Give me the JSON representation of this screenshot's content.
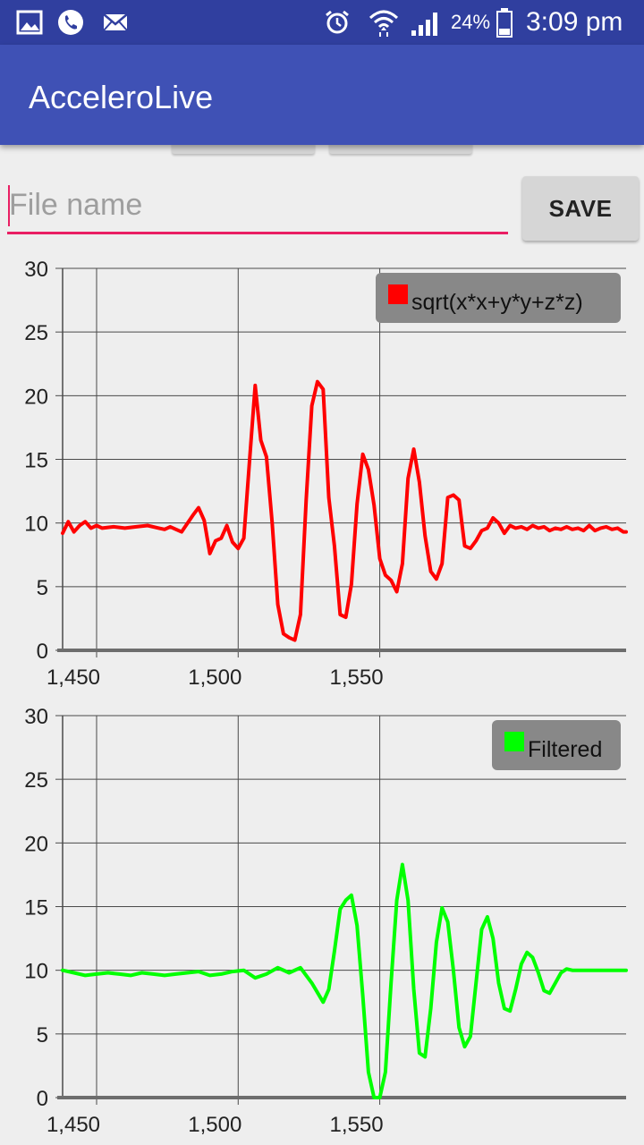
{
  "status_bar": {
    "battery_percent": "24%",
    "time": "3:09 pm",
    "icons": [
      "gallery-icon",
      "phone-call-icon",
      "email-icon",
      "alarm-icon",
      "wifi-icon",
      "signal-icon",
      "battery-icon"
    ]
  },
  "app": {
    "title": "AcceleroLive"
  },
  "file_form": {
    "placeholder": "File name",
    "value": "",
    "save_label": "SAVE"
  },
  "colors": {
    "status_bar": "#303f9f",
    "app_bar": "#3f51b5",
    "accent": "#e91e63",
    "series_raw": "#ff0000",
    "series_filtered": "#00ff00"
  },
  "chart_data": [
    {
      "type": "line",
      "title": "",
      "xlabel": "",
      "ylabel": "",
      "xlim": [
        1438,
        1637
      ],
      "ylim": [
        0,
        30
      ],
      "yticks": [
        0,
        5,
        10,
        15,
        20,
        25,
        30
      ],
      "xticks": [
        1450,
        1500,
        1550
      ],
      "xtick_labels": [
        "1,450",
        "1,500",
        "1,550"
      ],
      "grid": true,
      "legend": "top-right",
      "series": [
        {
          "name": "sqrt(x*x+y*y+z*z)",
          "color": "#ff0000",
          "x": [
            1438,
            1440,
            1442,
            1444,
            1446,
            1448,
            1450,
            1452,
            1456,
            1460,
            1464,
            1468,
            1472,
            1474,
            1476,
            1480,
            1484,
            1486,
            1488,
            1490,
            1492,
            1494,
            1496,
            1498,
            1500,
            1502,
            1504,
            1506,
            1508,
            1510,
            1512,
            1514,
            1516,
            1518,
            1520,
            1522,
            1524,
            1526,
            1528,
            1530,
            1532,
            1534,
            1536,
            1538,
            1540,
            1542,
            1544,
            1546,
            1548,
            1550,
            1552,
            1554,
            1556,
            1558,
            1560,
            1562,
            1564,
            1566,
            1568,
            1570,
            1572,
            1574,
            1576,
            1578,
            1580,
            1582,
            1584,
            1586,
            1588,
            1590,
            1592,
            1594,
            1596,
            1598,
            1600,
            1602,
            1604,
            1606,
            1608,
            1610,
            1612,
            1614,
            1616,
            1618,
            1620,
            1622,
            1624,
            1626,
            1628,
            1630,
            1632,
            1634,
            1636,
            1637
          ],
          "values": [
            9.2,
            10.1,
            9.3,
            9.8,
            10.1,
            9.6,
            9.8,
            9.6,
            9.7,
            9.6,
            9.7,
            9.8,
            9.6,
            9.5,
            9.7,
            9.3,
            10.6,
            11.2,
            10.2,
            7.6,
            8.6,
            8.8,
            9.8,
            8.5,
            8.0,
            8.8,
            14.8,
            20.8,
            16.5,
            15.2,
            10.0,
            3.6,
            1.3,
            1.0,
            0.8,
            2.8,
            11.8,
            19.2,
            21.1,
            20.5,
            12.0,
            8.2,
            2.8,
            2.6,
            5.2,
            11.5,
            15.4,
            14.2,
            11.4,
            7.2,
            5.9,
            5.5,
            4.6,
            6.8,
            13.5,
            15.8,
            13.2,
            9.0,
            6.2,
            5.6,
            6.8,
            12.0,
            12.2,
            11.8,
            8.2,
            8.0,
            8.6,
            9.4,
            9.6,
            10.4,
            10.0,
            9.2,
            9.8,
            9.6,
            9.7,
            9.5,
            9.8,
            9.6,
            9.7,
            9.4,
            9.6,
            9.5,
            9.7,
            9.5,
            9.6,
            9.4,
            9.8,
            9.4,
            9.6,
            9.7,
            9.5,
            9.6,
            9.3,
            9.3
          ]
        }
      ]
    },
    {
      "type": "line",
      "title": "",
      "xlabel": "",
      "ylabel": "",
      "xlim": [
        1438,
        1637
      ],
      "ylim": [
        0,
        30
      ],
      "yticks": [
        0,
        5,
        10,
        15,
        20,
        25,
        30
      ],
      "xticks": [
        1450,
        1500,
        1550
      ],
      "xtick_labels": [
        "1,450",
        "1,500",
        "1,550"
      ],
      "grid": true,
      "legend": "top-right",
      "series": [
        {
          "name": "Filtered",
          "color": "#00ff00",
          "x": [
            1438,
            1442,
            1446,
            1450,
            1454,
            1458,
            1462,
            1466,
            1470,
            1474,
            1478,
            1482,
            1486,
            1490,
            1494,
            1498,
            1502,
            1506,
            1510,
            1514,
            1518,
            1522,
            1526,
            1530,
            1532,
            1534,
            1536,
            1538,
            1540,
            1542,
            1544,
            1546,
            1548,
            1550,
            1552,
            1554,
            1556,
            1558,
            1560,
            1562,
            1564,
            1566,
            1568,
            1570,
            1572,
            1574,
            1576,
            1578,
            1580,
            1582,
            1584,
            1586,
            1588,
            1590,
            1592,
            1594,
            1596,
            1598,
            1600,
            1602,
            1604,
            1606,
            1608,
            1610,
            1612,
            1614,
            1616,
            1618,
            1620,
            1622,
            1624,
            1626,
            1628,
            1630,
            1632,
            1634,
            1637
          ],
          "values": [
            10.0,
            9.8,
            9.6,
            9.7,
            9.8,
            9.7,
            9.6,
            9.8,
            9.7,
            9.6,
            9.7,
            9.8,
            9.9,
            9.6,
            9.7,
            9.9,
            10.0,
            9.4,
            9.7,
            10.2,
            9.8,
            10.2,
            9.0,
            7.5,
            8.5,
            11.5,
            14.8,
            15.5,
            15.9,
            13.5,
            8.0,
            2.0,
            0.0,
            0.0,
            2.0,
            9.0,
            15.5,
            18.3,
            15.5,
            8.5,
            3.5,
            3.2,
            7.0,
            12.2,
            14.9,
            13.8,
            10.0,
            5.5,
            4.0,
            4.8,
            9.0,
            13.2,
            14.2,
            12.5,
            9.0,
            7.0,
            6.8,
            8.5,
            10.5,
            11.4,
            11.0,
            9.8,
            8.4,
            8.2,
            9.0,
            9.8,
            10.1,
            10.0,
            10.0,
            10.0,
            10.0,
            10.0,
            10.0,
            10.0,
            10.0,
            10.0,
            10.0
          ]
        }
      ]
    }
  ]
}
